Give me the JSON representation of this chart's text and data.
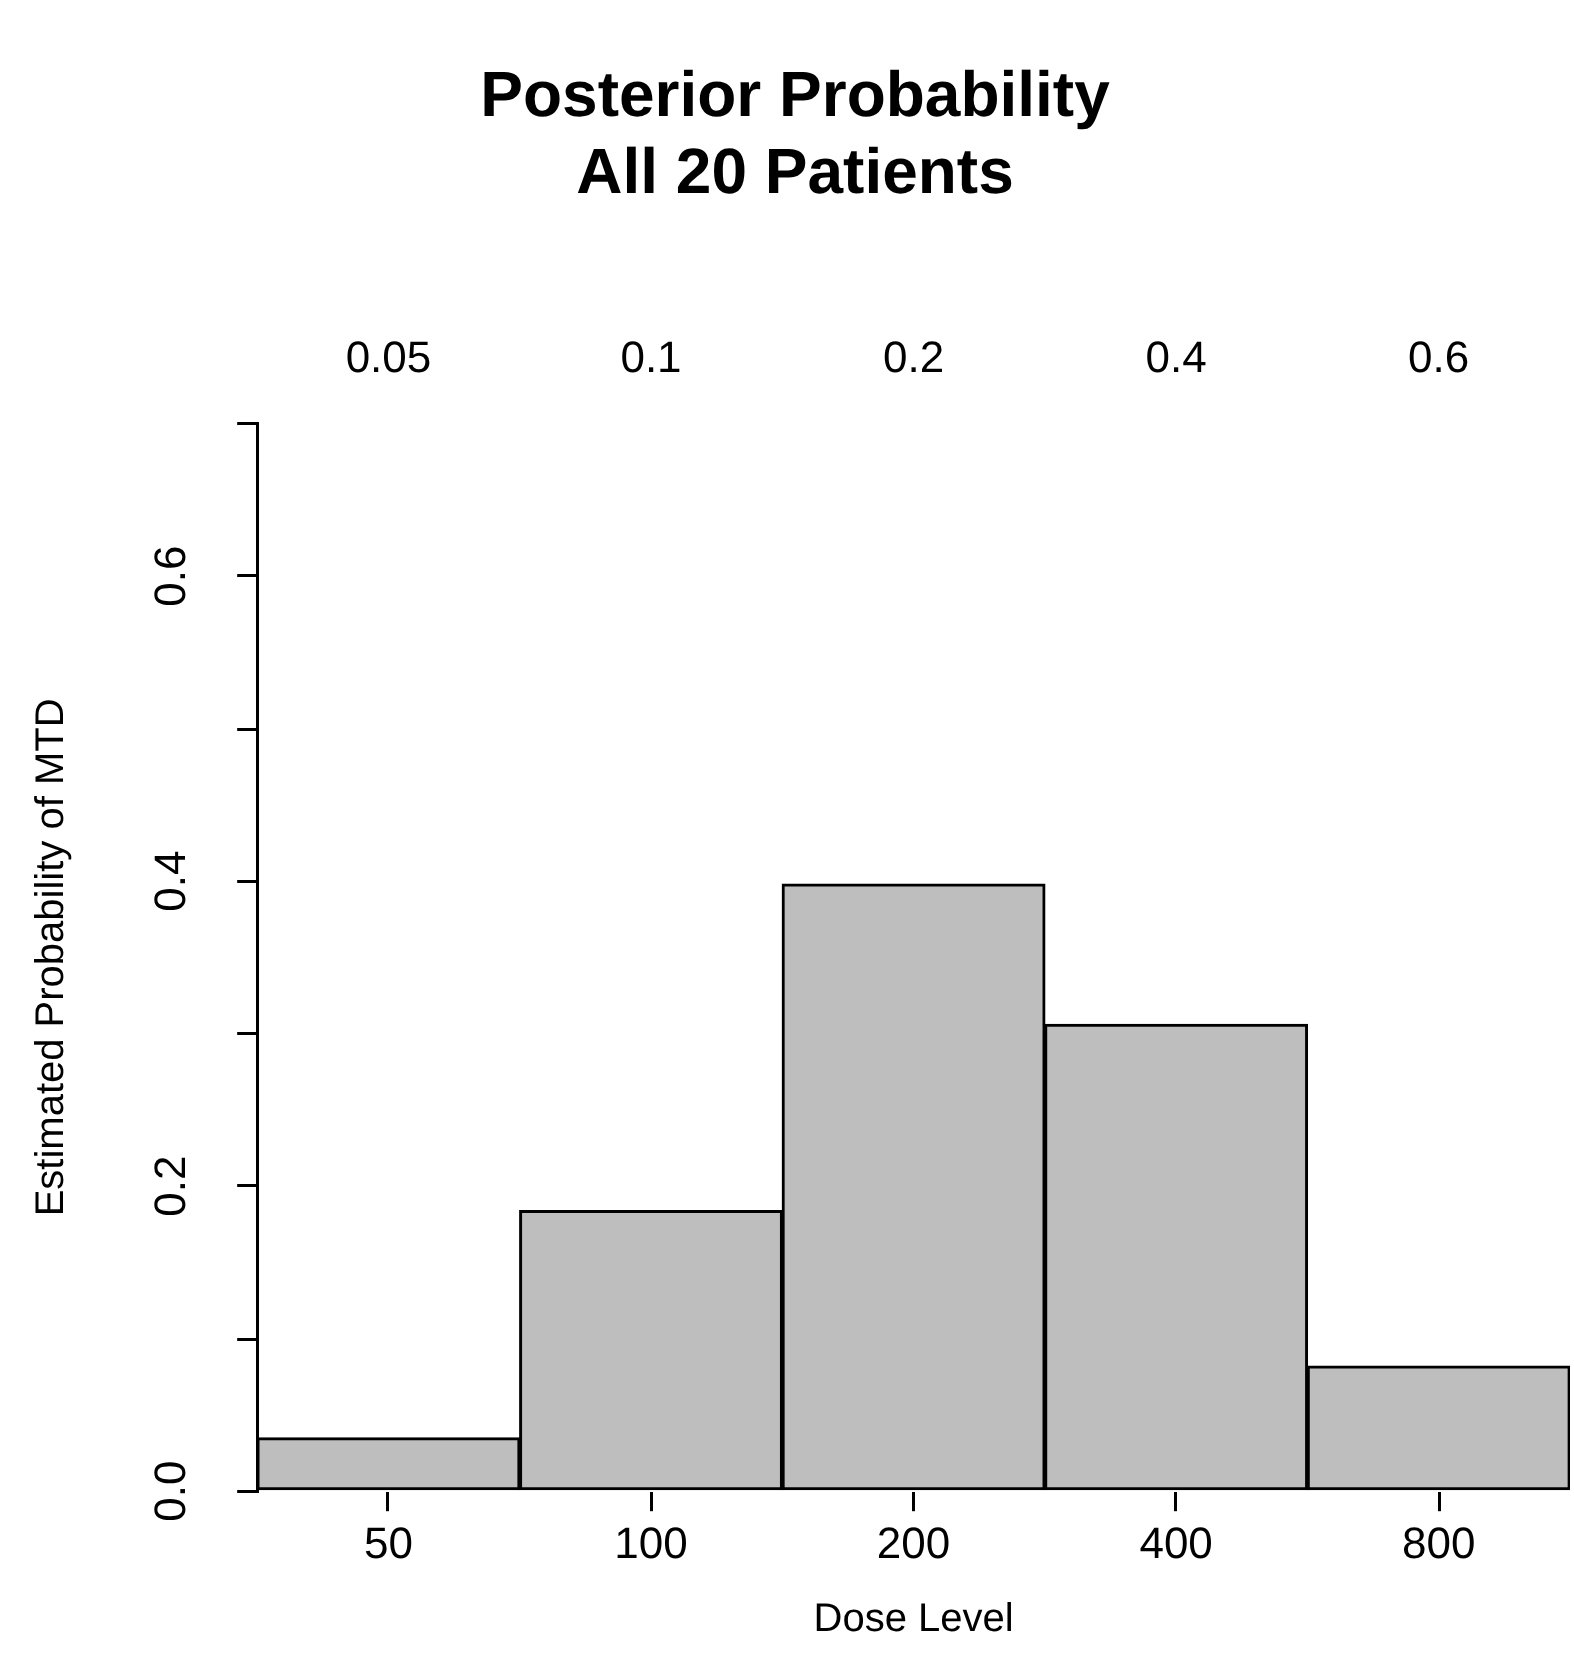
{
  "chart_data": {
    "type": "bar",
    "title": "Posterior Probability\nAll 20 Patients",
    "xlabel": "Dose Level",
    "ylabel": "Estimated Probability of MTD",
    "categories": [
      "50",
      "100",
      "200",
      "400",
      "800"
    ],
    "values": [
      0.035,
      0.184,
      0.398,
      0.306,
      0.082
    ],
    "color": "#bebebe",
    "ylim": [
      0,
      0.7
    ],
    "yticks": [
      {
        "value": 0,
        "label": "0.0"
      },
      {
        "value": 0.1,
        "label": null
      },
      0.2,
      {
        "value": 0.3,
        "label": null
      },
      0.4,
      {
        "value": 0.5,
        "label": null
      },
      0.6,
      {
        "value": 0.7,
        "label": null
      }
    ],
    "annotations": [
      "0.05",
      "0.1",
      "0.2",
      "0.4",
      "0.6"
    ],
    "grid": false,
    "legend": false
  }
}
